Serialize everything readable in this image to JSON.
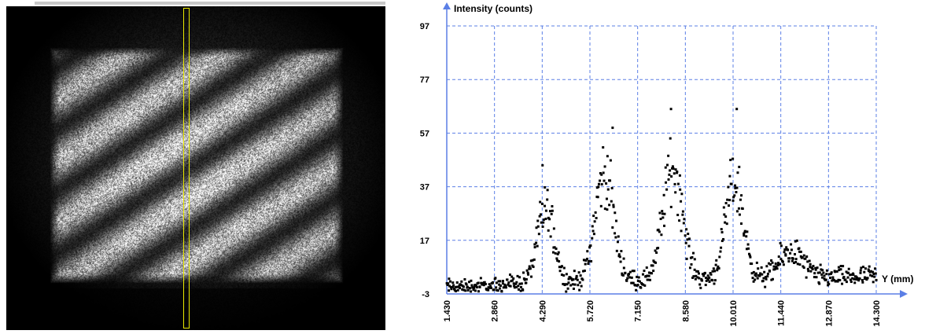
{
  "chart_data": {
    "type": "scatter",
    "ylabel": "Intensity (counts)",
    "xlabel": "Y (mm)",
    "xlim": [
      1.43,
      14.3
    ],
    "ylim": [
      -3,
      97
    ],
    "x_ticks": [
      "1.430",
      "2.860",
      "4.290",
      "5.720",
      "7.150",
      "8.580",
      "10.010",
      "11.440",
      "12.870",
      "14.300"
    ],
    "y_ticks": [
      "-3",
      "17",
      "37",
      "57",
      "77",
      "97"
    ],
    "grid": true,
    "point_color": "#000000",
    "grid_color": "#5b7fe6",
    "axis_color": "#5b7fe6",
    "profile": {
      "x_start": 1.43,
      "x_end": 14.3,
      "n_points": 700,
      "baseline_start": 0.5,
      "baseline_end": 3.5,
      "noise": 4,
      "peaks": [
        {
          "x": 4.4,
          "height": 28,
          "width": 0.35
        },
        {
          "x": 6.15,
          "height": 40,
          "width": 0.4
        },
        {
          "x": 8.2,
          "height": 42,
          "width": 0.42
        },
        {
          "x": 10.05,
          "height": 36,
          "width": 0.38
        },
        {
          "x": 11.75,
          "height": 10,
          "width": 0.5
        }
      ],
      "outliers": [
        {
          "x": 8.15,
          "y": 66
        },
        {
          "x": 10.12,
          "y": 66
        },
        {
          "x": 6.4,
          "y": 59
        },
        {
          "x": 4.3,
          "y": 45
        }
      ]
    }
  },
  "image_panel": {
    "fringe_count": 9,
    "fringe_angle_deg": -33
  }
}
